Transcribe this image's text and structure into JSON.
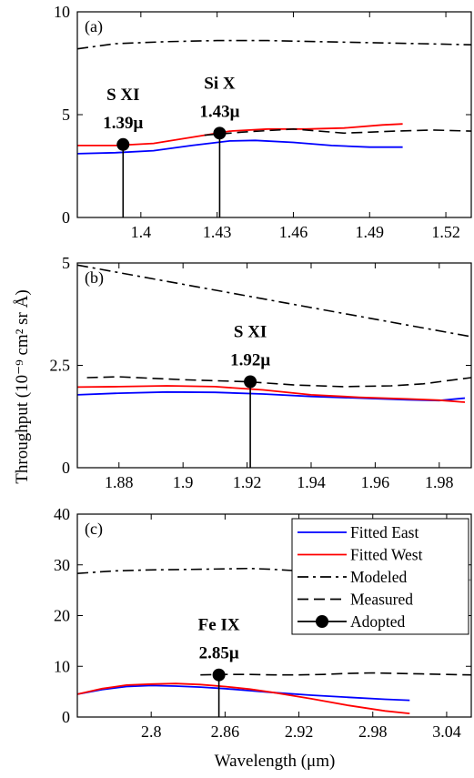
{
  "figure": {
    "ylabel": "Throughput (10⁻⁹ cm² sr Å)",
    "xlabel": "Wavelength (μm)"
  },
  "legend": {
    "entries": [
      {
        "label": "Fitted East",
        "style": "solid",
        "color": "#0000ff",
        "marker": false
      },
      {
        "label": "Fitted West",
        "style": "solid",
        "color": "#ff0000",
        "marker": false
      },
      {
        "label": "Modeled",
        "style": "dashdot",
        "color": "#000000",
        "marker": false
      },
      {
        "label": "Measured",
        "style": "dashed",
        "color": "#000000",
        "marker": false
      },
      {
        "label": "Adopted",
        "style": "solid",
        "color": "#000000",
        "marker": true
      }
    ]
  },
  "colors": {
    "east": "#0000ff",
    "west": "#ff0000",
    "modeled": "#000000",
    "measured": "#000000",
    "adopted": "#000000",
    "modeled_faded": "#a8a8a8"
  },
  "chart_data": [
    {
      "type": "line",
      "panel_label": "(a)",
      "xlim": [
        1.375,
        1.53
      ],
      "ylim": [
        0,
        10
      ],
      "xticks": [
        1.4,
        1.43,
        1.46,
        1.49,
        1.52
      ],
      "xtick_labels": [
        "1.4",
        "1.43",
        "1.46",
        "1.49",
        "1.52"
      ],
      "yticks": [
        0,
        5,
        10
      ],
      "ytick_labels": [
        "0",
        "5",
        "10"
      ],
      "series": [
        {
          "name": "Fitted East",
          "key": "east",
          "x": [
            1.375,
            1.39,
            1.405,
            1.42,
            1.435,
            1.445,
            1.46,
            1.475,
            1.49,
            1.503
          ],
          "y": [
            3.1,
            3.15,
            3.25,
            3.5,
            3.72,
            3.75,
            3.65,
            3.5,
            3.42,
            3.42
          ]
        },
        {
          "name": "Fitted West",
          "key": "west",
          "x": [
            1.375,
            1.39,
            1.405,
            1.42,
            1.435,
            1.45,
            1.465,
            1.48,
            1.495,
            1.503
          ],
          "y": [
            3.5,
            3.5,
            3.6,
            3.9,
            4.2,
            4.3,
            4.3,
            4.35,
            4.5,
            4.55
          ]
        },
        {
          "name": "Modeled",
          "key": "modeled",
          "x": [
            1.375,
            1.39,
            1.41,
            1.43,
            1.45,
            1.47,
            1.49,
            1.51,
            1.53
          ],
          "y": [
            8.2,
            8.45,
            8.55,
            8.6,
            8.6,
            8.55,
            8.5,
            8.45,
            8.4
          ]
        },
        {
          "name": "Measured",
          "key": "measured",
          "x": [
            1.425,
            1.44,
            1.46,
            1.48,
            1.5,
            1.515,
            1.53
          ],
          "y": [
            4.0,
            4.15,
            4.3,
            4.1,
            4.2,
            4.25,
            4.2
          ]
        }
      ],
      "adopted": [
        {
          "ion": "S XI",
          "wavelength_label": "1.39μ",
          "x": 1.393,
          "y": 3.55
        },
        {
          "ion": "Si X",
          "wavelength_label": "1.43μ",
          "x": 1.431,
          "y": 4.1
        }
      ]
    },
    {
      "type": "line",
      "panel_label": "(b)",
      "xlim": [
        1.867,
        1.99
      ],
      "ylim": [
        0,
        5
      ],
      "xticks": [
        1.88,
        1.9,
        1.92,
        1.94,
        1.96,
        1.98
      ],
      "xtick_labels": [
        "1.88",
        "1.9",
        "1.92",
        "1.94",
        "1.96",
        "1.98"
      ],
      "yticks": [
        0,
        2.5,
        5
      ],
      "ytick_labels": [
        "0",
        "2.5",
        "5"
      ],
      "series": [
        {
          "name": "Fitted East",
          "key": "east",
          "x": [
            1.867,
            1.88,
            1.895,
            1.91,
            1.925,
            1.94,
            1.955,
            1.97,
            1.98,
            1.988
          ],
          "y": [
            1.78,
            1.82,
            1.85,
            1.84,
            1.8,
            1.74,
            1.7,
            1.66,
            1.64,
            1.7
          ]
        },
        {
          "name": "Fitted West",
          "key": "west",
          "x": [
            1.867,
            1.88,
            1.895,
            1.91,
            1.925,
            1.94,
            1.955,
            1.97,
            1.98,
            1.988
          ],
          "y": [
            1.97,
            1.98,
            2.0,
            1.98,
            1.9,
            1.78,
            1.72,
            1.68,
            1.65,
            1.6
          ]
        },
        {
          "name": "Modeled",
          "key": "modeled",
          "x": [
            1.867,
            1.99
          ],
          "y": [
            4.95,
            3.2
          ]
        },
        {
          "name": "Measured",
          "key": "measured",
          "x": [
            1.87,
            1.88,
            1.9,
            1.92,
            1.935,
            1.95,
            1.965,
            1.975,
            1.99
          ],
          "y": [
            2.2,
            2.22,
            2.15,
            2.1,
            2.02,
            1.98,
            2.0,
            2.05,
            2.2
          ]
        }
      ],
      "adopted": [
        {
          "ion": "S XI",
          "wavelength_label": "1.92μ",
          "x": 1.921,
          "y": 2.1
        }
      ]
    },
    {
      "type": "line",
      "panel_label": "(c)",
      "xlim": [
        2.74,
        3.06
      ],
      "ylim": [
        0,
        40
      ],
      "xticks": [
        2.8,
        2.86,
        2.92,
        2.98,
        3.04
      ],
      "xtick_labels": [
        "2.8",
        "2.86",
        "2.92",
        "2.98",
        "3.04"
      ],
      "yticks": [
        0,
        10,
        20,
        30,
        40
      ],
      "ytick_labels": [
        "0",
        "10",
        "20",
        "30",
        "40"
      ],
      "series": [
        {
          "name": "Fitted East",
          "key": "east",
          "x": [
            2.74,
            2.76,
            2.78,
            2.8,
            2.82,
            2.84,
            2.86,
            2.88,
            2.9,
            2.93,
            2.96,
            2.99,
            3.01
          ],
          "y": [
            4.5,
            5.4,
            6.0,
            6.2,
            6.1,
            5.9,
            5.6,
            5.2,
            4.8,
            4.3,
            3.9,
            3.5,
            3.3
          ]
        },
        {
          "name": "Fitted West",
          "key": "west",
          "x": [
            2.74,
            2.76,
            2.78,
            2.8,
            2.82,
            2.84,
            2.86,
            2.88,
            2.9,
            2.93,
            2.96,
            2.99,
            3.01
          ],
          "y": [
            4.5,
            5.6,
            6.3,
            6.5,
            6.6,
            6.4,
            6.0,
            5.5,
            4.8,
            3.6,
            2.3,
            1.2,
            0.7
          ]
        },
        {
          "name": "Modeled",
          "key": "modeled",
          "x": [
            2.74,
            2.77,
            2.8,
            2.83,
            2.86,
            2.88,
            2.9,
            2.92,
            2.94
          ],
          "y": [
            28.3,
            28.8,
            29.0,
            29.1,
            29.2,
            29.3,
            29.1,
            28.8,
            28.5
          ]
        },
        {
          "name": "",
          "key": "modeled_faded",
          "x": [
            2.94,
            2.97,
            3.0,
            3.03,
            3.06
          ],
          "y": [
            28.5,
            28.1,
            27.7,
            27.3,
            27.0
          ]
        },
        {
          "name": "Measured",
          "key": "measured",
          "x": [
            2.84,
            2.86,
            2.88,
            2.9,
            2.92,
            2.94,
            2.96,
            2.98,
            3.0,
            3.02,
            3.04,
            3.06
          ],
          "y": [
            8.3,
            8.4,
            8.4,
            8.3,
            8.3,
            8.4,
            8.6,
            8.7,
            8.6,
            8.5,
            8.4,
            8.3
          ]
        }
      ],
      "adopted": [
        {
          "ion": "Fe IX",
          "wavelength_label": "2.85μ",
          "x": 2.855,
          "y": 8.3
        }
      ]
    }
  ]
}
